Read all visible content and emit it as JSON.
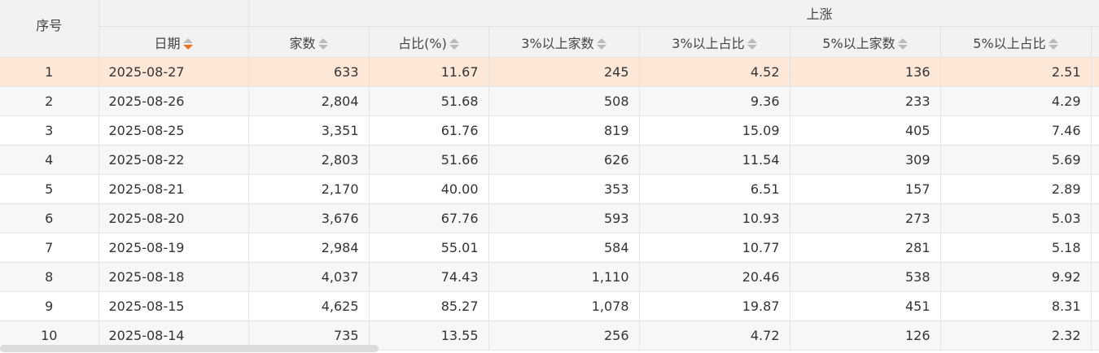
{
  "header": {
    "index": "序号",
    "date": "日期",
    "group": "上涨",
    "columns": [
      "家数",
      "占比(%)",
      "3%以上家数",
      "3%以上占比",
      "5%以上家数",
      "5%以上占比"
    ]
  },
  "sort": {
    "column": "日期",
    "direction": "desc",
    "active_color": "#f07020"
  },
  "selected_row": 1,
  "rows": [
    [
      "1",
      "2025-08-27",
      "633",
      "11.67",
      "245",
      "4.52",
      "136",
      "2.51"
    ],
    [
      "2",
      "2025-08-26",
      "2,804",
      "51.68",
      "508",
      "9.36",
      "233",
      "4.29"
    ],
    [
      "3",
      "2025-08-25",
      "3,351",
      "61.76",
      "819",
      "15.09",
      "405",
      "7.46"
    ],
    [
      "4",
      "2025-08-22",
      "2,803",
      "51.66",
      "626",
      "11.54",
      "309",
      "5.69"
    ],
    [
      "5",
      "2025-08-21",
      "2,170",
      "40.00",
      "353",
      "6.51",
      "157",
      "2.89"
    ],
    [
      "6",
      "2025-08-20",
      "3,676",
      "67.76",
      "593",
      "10.93",
      "273",
      "5.03"
    ],
    [
      "7",
      "2025-08-19",
      "2,984",
      "55.01",
      "584",
      "10.77",
      "281",
      "5.18"
    ],
    [
      "8",
      "2025-08-18",
      "4,037",
      "74.43",
      "1,110",
      "20.46",
      "538",
      "9.92"
    ],
    [
      "9",
      "2025-08-15",
      "4,625",
      "85.27",
      "1,078",
      "19.87",
      "451",
      "8.31"
    ],
    [
      "10",
      "2025-08-14",
      "735",
      "13.55",
      "256",
      "4.72",
      "126",
      "2.32"
    ]
  ]
}
